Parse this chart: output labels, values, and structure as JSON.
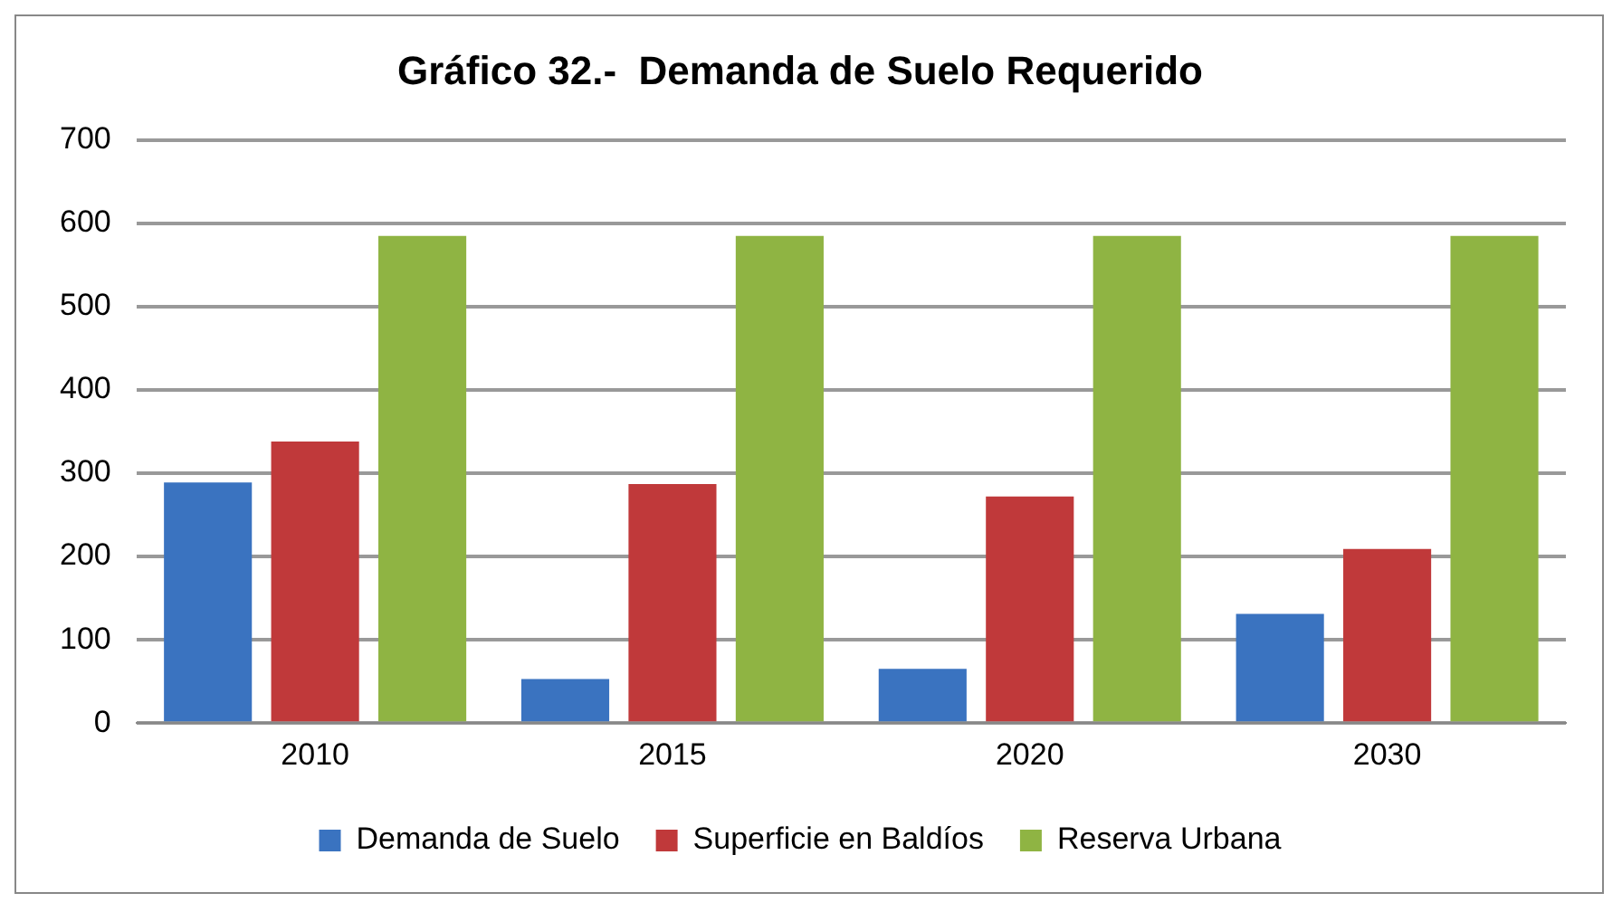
{
  "chart_data": {
    "type": "bar",
    "title": "Gráfico 32.-  Demanda de Suelo Requerido",
    "categories": [
      "2010",
      "2015",
      "2020",
      "2030"
    ],
    "series": [
      {
        "name": "Demanda de Suelo",
        "color": "#3a73c0",
        "values": [
          289,
          53,
          65,
          131
        ]
      },
      {
        "name": "Superficie en Baldíos",
        "color": "#c0393a",
        "values": [
          338,
          287,
          272,
          209
        ]
      },
      {
        "name": "Reserva Urbana",
        "color": "#8fb443",
        "values": [
          585,
          585,
          585,
          585
        ]
      }
    ],
    "ylim": [
      0,
      700
    ],
    "yticks": [
      0,
      100,
      200,
      300,
      400,
      500,
      600,
      700
    ],
    "grid": "y",
    "legend": "bottom"
  }
}
